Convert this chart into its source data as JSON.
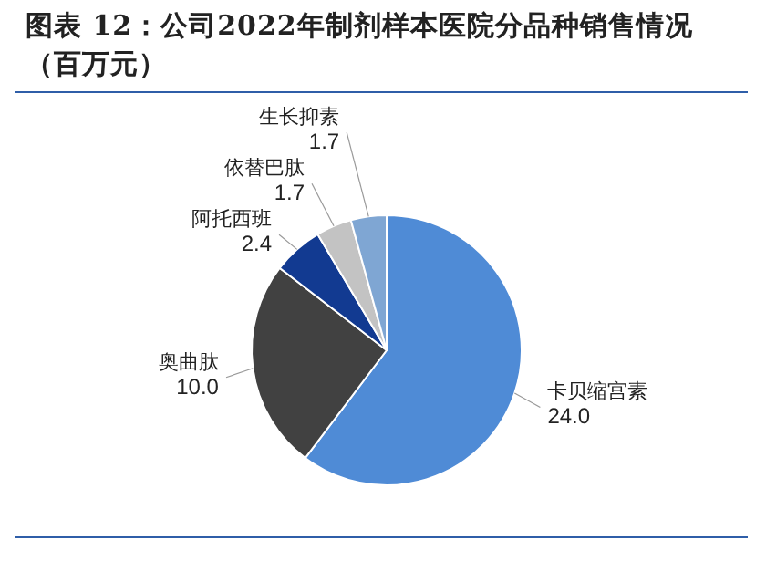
{
  "chart_data": {
    "type": "pie",
    "title": "图表 12：公司2022年制剂样本医院分品种销售情况（百万元）",
    "categories": [
      "卡贝缩宫素",
      "奥曲肽",
      "阿托西班",
      "依替巴肽",
      "生长抑素"
    ],
    "values": [
      24.0,
      10.0,
      2.4,
      1.7,
      1.7
    ],
    "value_labels": [
      "24.0",
      "10.0",
      "2.4",
      "1.7",
      "1.7"
    ],
    "colors": [
      "#4f8bd6",
      "#414141",
      "#123a91",
      "#c3c3c3",
      "#7fa6d3"
    ]
  }
}
